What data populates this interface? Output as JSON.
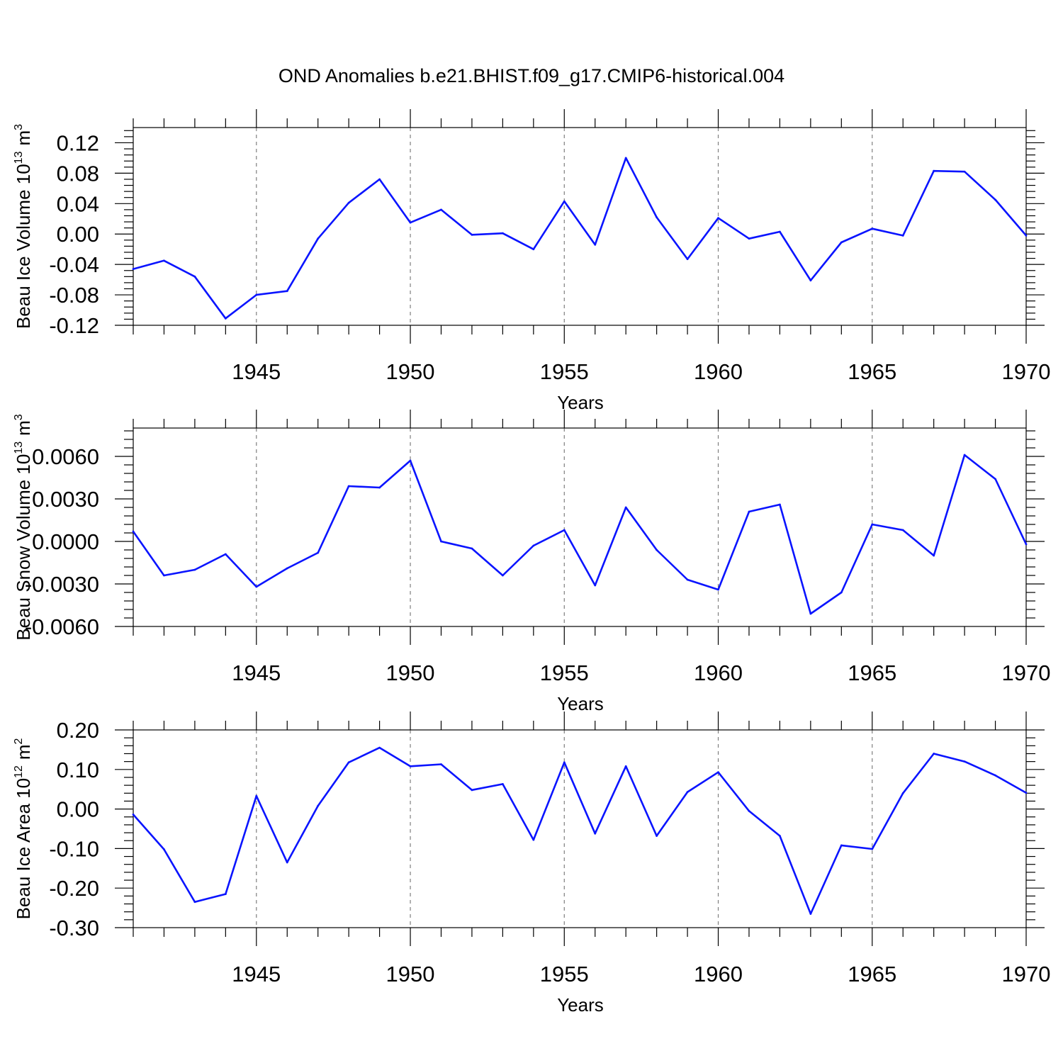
{
  "figure": {
    "title": "OND Anomalies b.e21.BHIST.f09_g17.CMIP6-historical.004",
    "line_color": "#0a14ff"
  },
  "chart_data": [
    {
      "type": "line",
      "name": "ice-volume",
      "ylabel_main": "Beau Ice Volume 10",
      "ylabel_sup": "13",
      "ylabel_unit": "m",
      "ylabel_unit_sup": "3",
      "xlabel": "Years",
      "xlim": [
        1941,
        1970
      ],
      "ylim": [
        -0.12,
        0.14
      ],
      "yticks": [
        -0.12,
        -0.08,
        -0.04,
        0.0,
        0.04,
        0.08,
        0.12
      ],
      "ytick_labels": [
        "-0.12",
        "-0.08",
        "-0.04",
        "0.00",
        "0.04",
        "0.08",
        "0.12"
      ],
      "xticks": [
        1945,
        1950,
        1955,
        1960,
        1965,
        1970
      ],
      "xtick_labels": [
        "1945",
        "1950",
        "1955",
        "1960",
        "1965",
        "1970"
      ],
      "grid_x": [
        1945,
        1950,
        1955,
        1960,
        1965
      ],
      "x": [
        1941,
        1942,
        1943,
        1944,
        1945,
        1946,
        1947,
        1948,
        1949,
        1950,
        1951,
        1952,
        1953,
        1954,
        1955,
        1956,
        1957,
        1958,
        1959,
        1960,
        1961,
        1962,
        1963,
        1964,
        1965,
        1966,
        1967,
        1968,
        1969,
        1970
      ],
      "values": [
        -0.046,
        -0.035,
        -0.056,
        -0.111,
        -0.08,
        -0.075,
        -0.006,
        0.041,
        0.072,
        0.015,
        0.032,
        -0.001,
        0.001,
        -0.02,
        0.043,
        -0.014,
        0.1,
        0.022,
        -0.033,
        0.021,
        -0.006,
        0.003,
        -0.061,
        -0.011,
        0.007,
        -0.002,
        0.083,
        0.082,
        0.045,
        -0.002
      ]
    },
    {
      "type": "line",
      "name": "snow-volume",
      "ylabel_main": "Beau Snow Volume 10",
      "ylabel_sup": "13",
      "ylabel_unit": "m",
      "ylabel_unit_sup": "3",
      "xlabel": "Years",
      "xlim": [
        1941,
        1970
      ],
      "ylim": [
        -0.006,
        0.008
      ],
      "yticks": [
        -0.006,
        -0.003,
        0.0,
        0.003,
        0.006
      ],
      "ytick_labels": [
        "-0.0060",
        "-0.0030",
        "0.0000",
        "0.0030",
        "0.0060"
      ],
      "xticks": [
        1945,
        1950,
        1955,
        1960,
        1965,
        1970
      ],
      "xtick_labels": [
        "1945",
        "1950",
        "1955",
        "1960",
        "1965",
        "1970"
      ],
      "grid_x": [
        1945,
        1950,
        1955,
        1960,
        1965
      ],
      "x": [
        1941,
        1942,
        1943,
        1944,
        1945,
        1946,
        1947,
        1948,
        1949,
        1950,
        1951,
        1952,
        1953,
        1954,
        1955,
        1956,
        1957,
        1958,
        1959,
        1960,
        1961,
        1962,
        1963,
        1964,
        1965,
        1966,
        1967,
        1968,
        1969,
        1970
      ],
      "values": [
        0.0007,
        -0.0024,
        -0.002,
        -0.0009,
        -0.0032,
        -0.0019,
        -0.0008,
        0.0039,
        0.0038,
        0.0057,
        0.0,
        -0.0005,
        -0.0024,
        -0.0003,
        0.0008,
        -0.0031,
        0.0024,
        -0.0006,
        -0.0027,
        -0.0034,
        0.0021,
        0.0026,
        -0.0051,
        -0.0036,
        0.0012,
        0.0008,
        -0.001,
        0.0061,
        0.0044,
        -0.0002
      ]
    },
    {
      "type": "line",
      "name": "ice-area",
      "ylabel_main": "Beau Ice Area 10",
      "ylabel_sup": "12",
      "ylabel_unit": "m",
      "ylabel_unit_sup": "2",
      "xlabel": "Years",
      "xlim": [
        1941,
        1970
      ],
      "ylim": [
        -0.3,
        0.2
      ],
      "yticks": [
        -0.3,
        -0.2,
        -0.1,
        0.0,
        0.1,
        0.2
      ],
      "ytick_labels": [
        "-0.30",
        "-0.20",
        "-0.10",
        "0.00",
        "0.10",
        "0.20"
      ],
      "xticks": [
        1945,
        1950,
        1955,
        1960,
        1965,
        1970
      ],
      "xtick_labels": [
        "1945",
        "1950",
        "1955",
        "1960",
        "1965",
        "1970"
      ],
      "grid_x": [
        1945,
        1950,
        1955,
        1960,
        1965
      ],
      "x": [
        1941,
        1942,
        1943,
        1944,
        1945,
        1946,
        1947,
        1948,
        1949,
        1950,
        1951,
        1952,
        1953,
        1954,
        1955,
        1956,
        1957,
        1958,
        1959,
        1960,
        1961,
        1962,
        1963,
        1964,
        1965,
        1966,
        1967,
        1968,
        1969,
        1970
      ],
      "values": [
        -0.014,
        -0.102,
        -0.235,
        -0.215,
        0.033,
        -0.135,
        0.008,
        0.118,
        0.155,
        0.108,
        0.113,
        0.048,
        0.063,
        -0.078,
        0.118,
        -0.062,
        0.108,
        -0.068,
        0.043,
        0.093,
        -0.005,
        -0.068,
        -0.265,
        -0.092,
        -0.101,
        0.04,
        0.14,
        0.12,
        0.085,
        0.041
      ]
    }
  ]
}
